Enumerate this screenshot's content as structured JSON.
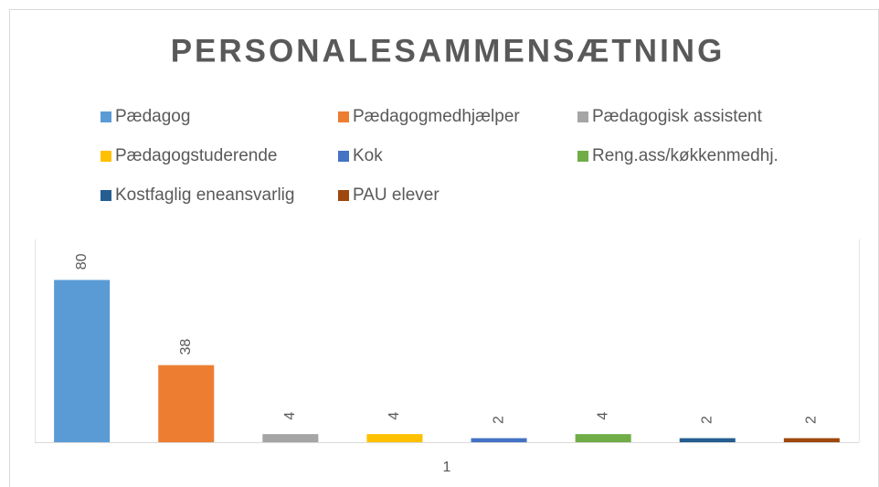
{
  "chart_data": {
    "type": "bar",
    "title": "PERSONALESAMMENSÆTNING",
    "categories": [
      "1"
    ],
    "series": [
      {
        "name": "Pædagog",
        "color": "#5b9bd5",
        "values": [
          80
        ]
      },
      {
        "name": "Pædagogmedhjælper",
        "color": "#ed7d31",
        "values": [
          38
        ]
      },
      {
        "name": "Pædagogisk assistent",
        "color": "#a5a5a5",
        "values": [
          4
        ]
      },
      {
        "name": "Pædagogstuderende",
        "color": "#ffc000",
        "values": [
          4
        ]
      },
      {
        "name": "Kok",
        "color": "#4472c4",
        "values": [
          2
        ]
      },
      {
        "name": "Reng.ass/køkkenmedhj.",
        "color": "#70ad47",
        "values": [
          4
        ]
      },
      {
        "name": "Kostfaglig eneansvarlig",
        "color": "#255e91",
        "values": [
          2
        ]
      },
      {
        "name": "PAU elever",
        "color": "#9e480e",
        "values": [
          2
        ]
      }
    ],
    "ylim": [
      0,
      100
    ],
    "legend": "top"
  }
}
